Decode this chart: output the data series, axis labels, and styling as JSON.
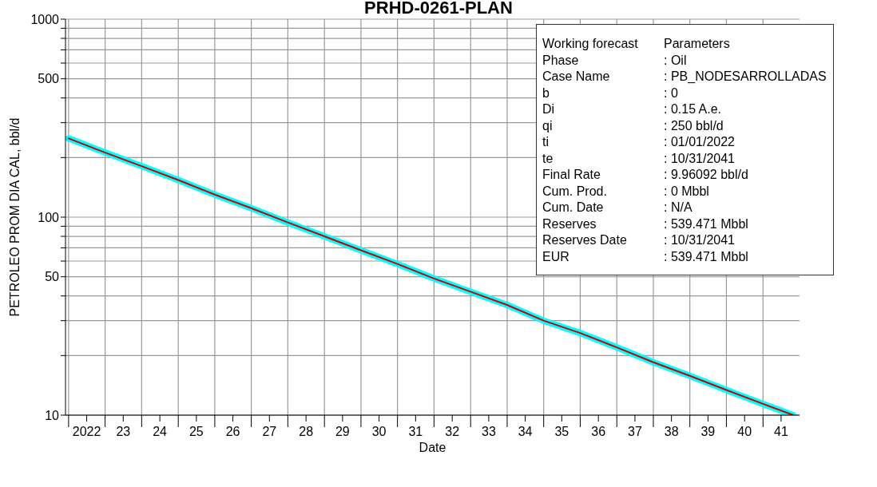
{
  "chart_data": {
    "type": "line",
    "title": "PRHD-0261-PLAN",
    "xlabel": "Date",
    "ylabel": "PETROLEO PROM DIA CAL, bbl/d",
    "x": [
      "2022-01-01",
      "2023-01-01",
      "2024-01-01",
      "2025-01-01",
      "2026-01-01",
      "2027-01-01",
      "2028-01-01",
      "2029-01-01",
      "2030-01-01",
      "2031-01-01",
      "2032-01-01",
      "2033-01-01",
      "2034-01-01",
      "2035-01-01",
      "2036-01-01",
      "2037-01-01",
      "2038-01-01",
      "2039-01-01",
      "2040-01-01",
      "2041-01-01",
      "2041-10-31"
    ],
    "series": [
      {
        "color": "#00ffff",
        "values": [
          250,
          212,
          181,
          154,
          130,
          111,
          94,
          80,
          68,
          58,
          49,
          42,
          36,
          30,
          26,
          22,
          18.5,
          15.8,
          13.4,
          11.4,
          10
        ]
      },
      {
        "color": "#cc0000",
        "values": [
          250,
          212,
          181,
          154,
          130,
          111,
          94,
          80,
          68,
          58,
          49,
          42,
          36,
          30,
          26,
          22,
          18.5,
          15.8,
          13.4,
          11.4,
          10
        ]
      }
    ],
    "log": "y",
    "xlim": [
      "2021-12-01",
      "2042-01-01"
    ],
    "ylim": [
      10,
      1000
    ],
    "xticks": [
      {
        "value": "2022-01-01",
        "label": null
      },
      {
        "value": "2022-07-01",
        "label": "2022"
      },
      {
        "value": "2023-01-01",
        "label": null
      },
      {
        "value": "2023-07-01",
        "label": "23"
      },
      {
        "value": "2024-01-01",
        "label": null
      },
      {
        "value": "2024-07-01",
        "label": "24"
      },
      {
        "value": "2025-01-01",
        "label": null
      },
      {
        "value": "2025-07-01",
        "label": "25"
      },
      {
        "value": "2026-01-01",
        "label": null
      },
      {
        "value": "2026-07-01",
        "label": "26"
      },
      {
        "value": "2027-01-01",
        "label": null
      },
      {
        "value": "2027-07-01",
        "label": "27"
      },
      {
        "value": "2028-01-01",
        "label": null
      },
      {
        "value": "2028-07-01",
        "label": "28"
      },
      {
        "value": "2029-01-01",
        "label": null
      },
      {
        "value": "2029-07-01",
        "label": "29"
      },
      {
        "value": "2030-01-01",
        "label": null
      },
      {
        "value": "2030-07-01",
        "label": "30"
      },
      {
        "value": "2031-01-01",
        "label": null
      },
      {
        "value": "2031-07-01",
        "label": "31"
      },
      {
        "value": "2032-01-01",
        "label": null
      },
      {
        "value": "2032-07-01",
        "label": "32"
      },
      {
        "value": "2033-01-01",
        "label": null
      },
      {
        "value": "2033-07-01",
        "label": "33"
      },
      {
        "value": "2034-01-01",
        "label": null
      },
      {
        "value": "2034-07-01",
        "label": "34"
      },
      {
        "value": "2035-01-01",
        "label": null
      },
      {
        "value": "2035-07-01",
        "label": "35"
      },
      {
        "value": "2036-01-01",
        "label": null
      },
      {
        "value": "2036-07-01",
        "label": "36"
      },
      {
        "value": "2037-01-01",
        "label": null
      },
      {
        "value": "2037-07-01",
        "label": "37"
      },
      {
        "value": "2038-01-01",
        "label": null
      },
      {
        "value": "2038-07-01",
        "label": "38"
      },
      {
        "value": "2039-01-01",
        "label": null
      },
      {
        "value": "2039-07-01",
        "label": "39"
      },
      {
        "value": "2040-01-01",
        "label": null
      },
      {
        "value": "2040-07-01",
        "label": "40"
      },
      {
        "value": "2041-01-01",
        "label": null
      },
      {
        "value": "2041-07-01",
        "label": "41"
      }
    ],
    "yticks": [
      10,
      {
        "value": 20,
        "label": null
      },
      {
        "value": 30,
        "label": null
      },
      {
        "value": 40,
        "label": null
      },
      50,
      {
        "value": 60,
        "label": null
      },
      {
        "value": 70,
        "label": null
      },
      {
        "value": 80,
        "label": null
      },
      {
        "value": 90,
        "label": null
      },
      100,
      {
        "value": 200,
        "label": null
      },
      {
        "value": 300,
        "label": null
      },
      {
        "value": 400,
        "label": null
      },
      500,
      {
        "value": 600,
        "label": null
      },
      {
        "value": 700,
        "label": null
      },
      {
        "value": 800,
        "label": null
      },
      {
        "value": 900,
        "label": null
      },
      1000
    ],
    "grid": true,
    "legend": false,
    "marker": "none",
    "line_style": "solid",
    "annotations": [
      "Working forecast",
      "Parameters",
      "Phase",
      ": Oil",
      "Case Name",
      ": PB_NODESARROLLADAS",
      "b",
      ": 0",
      "Di",
      ": 0.15 A.e.",
      "qi",
      ": 250 bbl/d",
      "ti",
      ": 01/01/2022",
      "te",
      ": 10/31/2041",
      "Final Rate",
      ": 9.96092 bbl/d",
      "Cum. Prod.",
      ": 0 Mbbl",
      "Cum. Date",
      ": N/A",
      "Reserves",
      ": 539.471 Mbbl",
      "Reserves Date",
      ": 10/31/2041",
      "EUR",
      ": 539.471 Mbbl"
    ]
  }
}
